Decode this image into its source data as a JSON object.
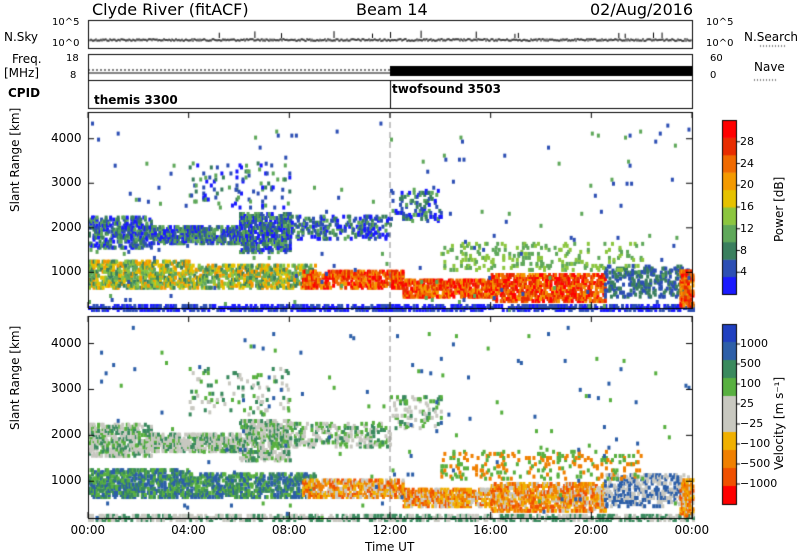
{
  "header": {
    "station": "Clyde River (fitACF)",
    "beam": "Beam 14",
    "date": "02/Aug/2016"
  },
  "panel_labels": {
    "nsky": "N.Sky",
    "nsearch": "N.Search",
    "freq": "Freq.",
    "freq_unit": "[MHz]",
    "nave": "Nave",
    "cpid": "CPID",
    "nsky_top": "10^5",
    "nsky_bottom": "10^0",
    "nsearch_top": "10^5",
    "nsearch_bottom": "10^0",
    "freq_top": "18",
    "freq_bottom": "8",
    "nave_top": "60",
    "nave_bottom": "0"
  },
  "cpid_modes": [
    {
      "label": "themis 3300",
      "start_hour": 0
    },
    {
      "label": "twofsound 3503",
      "start_hour": 12
    }
  ],
  "colors": {
    "power_scale": [
      "#1a1aff",
      "#2d4fb4",
      "#3a7f5e",
      "#5fa85a",
      "#8cc63f",
      "#e6c200",
      "#f49a00",
      "#f06a00",
      "#e82c00",
      "#ff0000"
    ],
    "velocity_scale": [
      "#2040c0",
      "#2d5fa8",
      "#3a8a5e",
      "#58b040",
      "#c8c8c0",
      "#c8c8c0",
      "#f0b000",
      "#f08000",
      "#f05000",
      "#ff0000"
    ]
  },
  "chart_data": [
    {
      "type": "heatmap",
      "panel": "power",
      "ylabel": "Slant Range [km]",
      "yticks": [
        1000,
        2000,
        3000,
        4000
      ],
      "ylim": [
        200,
        4600
      ],
      "xlim": [
        0,
        24
      ],
      "colorbar_label": "Power [dB]",
      "colorbar_ticks": [
        "4",
        "8",
        "12",
        "16",
        "20",
        "24",
        "28"
      ]
    },
    {
      "type": "heatmap",
      "panel": "velocity",
      "ylabel": "Slant Range [km]",
      "yticks": [
        1000,
        2000,
        3000,
        4000
      ],
      "ylim": [
        200,
        4600
      ],
      "xlim": [
        0,
        24
      ],
      "xlabel": "Time UT",
      "xticks": [
        "00:00",
        "04:00",
        "08:00",
        "12:00",
        "16:00",
        "20:00",
        "00:00"
      ],
      "colorbar_label": "Velocity [m s⁻¹]",
      "colorbar_ticks": [
        "1000",
        "500",
        "100",
        "25",
        "−25",
        "−100",
        "−500",
        "−1000"
      ]
    }
  ]
}
